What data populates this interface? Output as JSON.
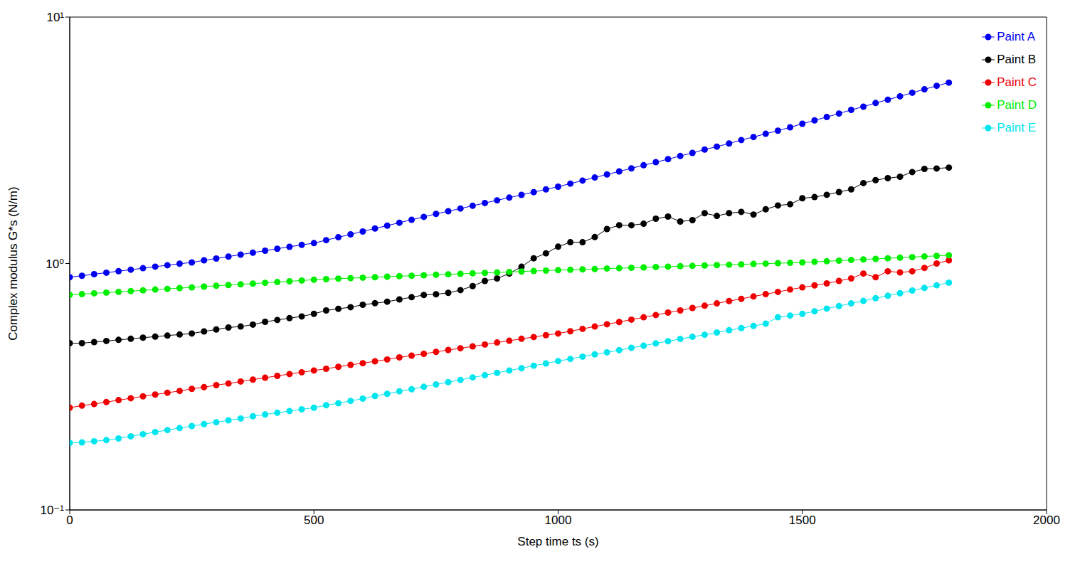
{
  "chart_data": {
    "type": "line",
    "xlabel": "Step time ts (s)",
    "ylabel": "Complex modulus G*s (N/m)",
    "log": "y",
    "grid": false,
    "legend": "top-right",
    "marker": "circle",
    "xlim": [
      0,
      2000
    ],
    "xticks": [
      0,
      500,
      1000,
      1500,
      2000
    ],
    "ylim": [
      0.1,
      10
    ],
    "yticks": [
      {
        "value": 0.1,
        "label": "10⁻¹"
      },
      {
        "value": 1,
        "label": "10⁰"
      },
      {
        "value": 10,
        "label": "10¹"
      }
    ],
    "x": [
      0,
      25,
      50,
      75,
      100,
      125,
      150,
      175,
      200,
      225,
      250,
      275,
      300,
      325,
      350,
      375,
      400,
      425,
      450,
      475,
      500,
      525,
      550,
      575,
      600,
      625,
      650,
      675,
      700,
      725,
      750,
      775,
      800,
      825,
      850,
      875,
      900,
      925,
      950,
      975,
      1000,
      1025,
      1050,
      1075,
      1100,
      1125,
      1150,
      1175,
      1200,
      1225,
      1250,
      1275,
      1300,
      1325,
      1350,
      1375,
      1400,
      1425,
      1450,
      1475,
      1500,
      1525,
      1550,
      1575,
      1600,
      1625,
      1650,
      1675,
      1700,
      1725,
      1750,
      1775,
      1800
    ],
    "series": [
      {
        "name": "Paint A",
        "color": "#0000ee",
        "values": [
          0.88,
          0.892,
          0.905,
          0.918,
          0.931,
          0.944,
          0.957,
          0.971,
          0.984,
          0.998,
          1.01,
          1.03,
          1.048,
          1.067,
          1.087,
          1.107,
          1.127,
          1.148,
          1.169,
          1.19,
          1.21,
          1.244,
          1.278,
          1.313,
          1.349,
          1.387,
          1.425,
          1.464,
          1.505,
          1.546,
          1.59,
          1.63,
          1.672,
          1.715,
          1.76,
          1.805,
          1.851,
          1.899,
          1.948,
          1.998,
          2.05,
          2.11,
          2.17,
          2.233,
          2.298,
          2.365,
          2.433,
          2.504,
          2.577,
          2.651,
          2.73,
          2.81,
          2.9,
          2.98,
          3.07,
          3.17,
          3.26,
          3.36,
          3.46,
          3.57,
          3.69,
          3.81,
          3.93,
          4.06,
          4.2,
          4.33,
          4.48,
          4.62,
          4.77,
          4.93,
          5.09,
          5.26,
          5.42
        ]
      },
      {
        "name": "Paint B",
        "color": "#000000",
        "values": [
          0.475,
          0.475,
          0.48,
          0.485,
          0.49,
          0.495,
          0.5,
          0.505,
          0.51,
          0.515,
          0.52,
          0.53,
          0.54,
          0.55,
          0.555,
          0.565,
          0.58,
          0.59,
          0.6,
          0.61,
          0.625,
          0.645,
          0.655,
          0.665,
          0.68,
          0.69,
          0.7,
          0.715,
          0.73,
          0.745,
          0.75,
          0.76,
          0.78,
          0.81,
          0.85,
          0.87,
          0.91,
          0.97,
          1.05,
          1.1,
          1.17,
          1.22,
          1.22,
          1.28,
          1.38,
          1.43,
          1.43,
          1.45,
          1.52,
          1.55,
          1.48,
          1.5,
          1.6,
          1.56,
          1.6,
          1.62,
          1.58,
          1.66,
          1.72,
          1.74,
          1.84,
          1.86,
          1.9,
          1.95,
          2.0,
          2.12,
          2.18,
          2.22,
          2.25,
          2.35,
          2.42,
          2.43,
          2.45
        ]
      },
      {
        "name": "Paint C",
        "color": "#ee0000",
        "values": [
          0.26,
          0.265,
          0.269,
          0.274,
          0.279,
          0.284,
          0.289,
          0.294,
          0.299,
          0.304,
          0.31,
          0.315,
          0.321,
          0.326,
          0.332,
          0.338,
          0.344,
          0.35,
          0.356,
          0.362,
          0.368,
          0.374,
          0.381,
          0.388,
          0.394,
          0.401,
          0.408,
          0.416,
          0.423,
          0.43,
          0.438,
          0.446,
          0.453,
          0.461,
          0.469,
          0.478,
          0.486,
          0.495,
          0.503,
          0.512,
          0.52,
          0.531,
          0.543,
          0.555,
          0.567,
          0.579,
          0.592,
          0.605,
          0.618,
          0.632,
          0.645,
          0.66,
          0.674,
          0.689,
          0.704,
          0.719,
          0.735,
          0.751,
          0.767,
          0.784,
          0.8,
          0.815,
          0.83,
          0.85,
          0.87,
          0.91,
          0.88,
          0.93,
          0.92,
          0.93,
          0.96,
          1.0,
          1.03
        ]
      },
      {
        "name": "Paint D",
        "color": "#00ee00",
        "values": [
          0.746,
          0.751,
          0.757,
          0.762,
          0.767,
          0.773,
          0.778,
          0.784,
          0.789,
          0.795,
          0.8,
          0.806,
          0.812,
          0.818,
          0.823,
          0.829,
          0.835,
          0.841,
          0.847,
          0.853,
          0.86,
          0.864,
          0.868,
          0.872,
          0.876,
          0.88,
          0.884,
          0.888,
          0.892,
          0.896,
          0.9,
          0.904,
          0.908,
          0.912,
          0.916,
          0.92,
          0.924,
          0.928,
          0.932,
          0.936,
          0.94,
          0.943,
          0.947,
          0.95,
          0.954,
          0.957,
          0.961,
          0.964,
          0.968,
          0.971,
          0.975,
          0.978,
          0.982,
          0.985,
          0.989,
          0.992,
          0.996,
          0.999,
          1.003,
          1.006,
          1.01,
          1.016,
          1.021,
          1.027,
          1.033,
          1.039,
          1.044,
          1.05,
          1.056,
          1.062,
          1.068,
          1.074,
          1.08
        ]
      },
      {
        "name": "Paint E",
        "color": "#00e5ee",
        "values": [
          0.187,
          0.188,
          0.19,
          0.192,
          0.195,
          0.199,
          0.203,
          0.207,
          0.211,
          0.215,
          0.219,
          0.223,
          0.227,
          0.231,
          0.235,
          0.24,
          0.244,
          0.248,
          0.252,
          0.256,
          0.26,
          0.266,
          0.271,
          0.277,
          0.283,
          0.29,
          0.296,
          0.303,
          0.309,
          0.316,
          0.323,
          0.33,
          0.337,
          0.345,
          0.352,
          0.36,
          0.368,
          0.376,
          0.385,
          0.393,
          0.402,
          0.41,
          0.419,
          0.428,
          0.436,
          0.445,
          0.455,
          0.464,
          0.474,
          0.484,
          0.494,
          0.504,
          0.514,
          0.525,
          0.536,
          0.547,
          0.558,
          0.57,
          0.605,
          0.615,
          0.625,
          0.64,
          0.656,
          0.672,
          0.689,
          0.705,
          0.723,
          0.74,
          0.758,
          0.777,
          0.796,
          0.816,
          0.836
        ]
      }
    ]
  }
}
